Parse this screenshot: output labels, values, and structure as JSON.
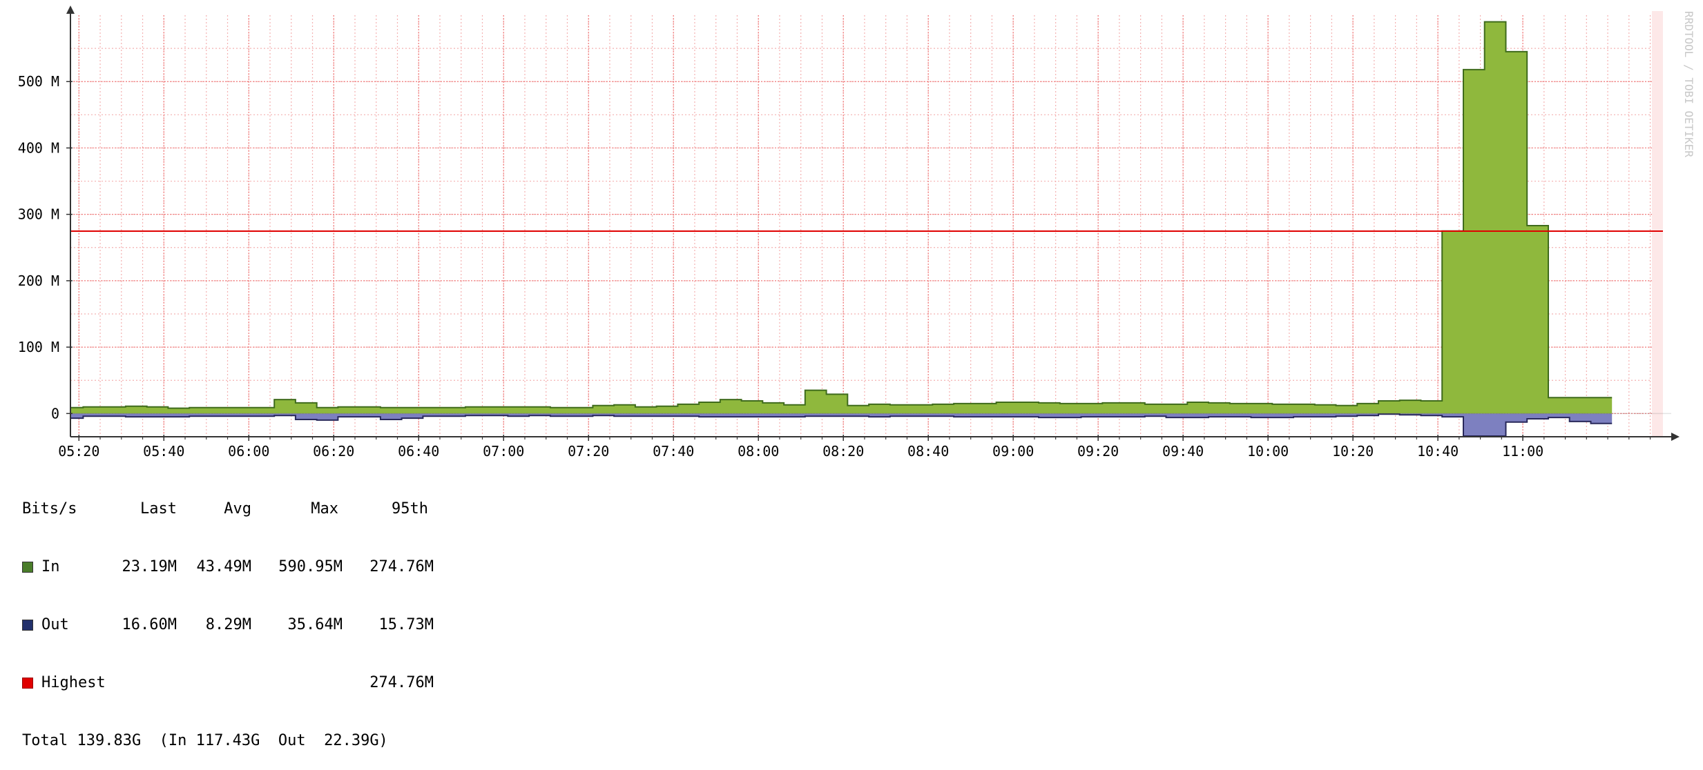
{
  "chart_data": {
    "type": "area",
    "watermark": "RRDTOOL / TOBI OETIKER",
    "y_ticks": [
      {
        "value": 0,
        "label": "0"
      },
      {
        "value": 100,
        "label": "100 M"
      },
      {
        "value": 200,
        "label": "200 M"
      },
      {
        "value": 300,
        "label": "300 M"
      },
      {
        "value": 400,
        "label": "400 M"
      },
      {
        "value": 500,
        "label": "500 M"
      }
    ],
    "x_ticks": [
      "05:20",
      "05:40",
      "06:00",
      "06:20",
      "06:40",
      "07:00",
      "07:20",
      "07:40",
      "08:00",
      "08:20",
      "08:40",
      "09:00",
      "09:20",
      "09:40",
      "10:00",
      "10:20",
      "10:40",
      "11:00"
    ],
    "x_range": [
      "05:18",
      "11:33"
    ],
    "ylim": [
      -35,
      600
    ],
    "unit": "Mbit/s",
    "grid": true,
    "threshold": {
      "name": "Highest",
      "value": 274.76,
      "color": "#e00000"
    },
    "series": [
      {
        "name": "In",
        "color": "#8fb83d",
        "line_color": "#3f6b1c",
        "direction": "up",
        "x": [
          "05:18",
          "05:21",
          "05:31",
          "05:36",
          "05:41",
          "05:46",
          "05:51",
          "05:56",
          "06:01",
          "06:06",
          "06:11",
          "06:16",
          "06:21",
          "06:26",
          "06:31",
          "06:36",
          "06:41",
          "06:46",
          "06:51",
          "06:56",
          "07:01",
          "07:06",
          "07:11",
          "07:16",
          "07:21",
          "07:26",
          "07:31",
          "07:36",
          "07:41",
          "07:46",
          "07:51",
          "07:56",
          "08:01",
          "08:06",
          "08:11",
          "08:16",
          "08:21",
          "08:26",
          "08:31",
          "08:36",
          "08:41",
          "08:46",
          "08:51",
          "08:56",
          "09:01",
          "09:06",
          "09:11",
          "09:16",
          "09:21",
          "09:26",
          "09:31",
          "09:36",
          "09:41",
          "09:46",
          "09:51",
          "09:56",
          "10:01",
          "10:06",
          "10:11",
          "10:16",
          "10:21",
          "10:26",
          "10:31",
          "10:36",
          "10:41",
          "10:46",
          "10:51",
          "10:56",
          "11:01",
          "11:06",
          "11:11",
          "11:16"
        ],
        "values": [
          9,
          10,
          11,
          10,
          8,
          9,
          9,
          9,
          9,
          21,
          16,
          9,
          10,
          10,
          9,
          9,
          9,
          9,
          10,
          10,
          10,
          10,
          9,
          9,
          12,
          13,
          10,
          11,
          14,
          17,
          21,
          19,
          16,
          13,
          35,
          29,
          12,
          14,
          13,
          13,
          14,
          15,
          15,
          17,
          17,
          16,
          15,
          15,
          16,
          16,
          14,
          14,
          17,
          16,
          15,
          15,
          14,
          14,
          13,
          12,
          15,
          19,
          20,
          19,
          275,
          518,
          590,
          545,
          283,
          24,
          24,
          24
        ]
      },
      {
        "name": "Out",
        "color": "#7d80c0",
        "line_color": "#28285a",
        "direction": "down",
        "x": [
          "05:18",
          "05:21",
          "05:31",
          "05:36",
          "05:41",
          "05:46",
          "05:51",
          "05:56",
          "06:01",
          "06:06",
          "06:11",
          "06:16",
          "06:21",
          "06:26",
          "06:31",
          "06:36",
          "06:41",
          "06:46",
          "06:51",
          "06:56",
          "07:01",
          "07:06",
          "07:11",
          "07:16",
          "07:21",
          "07:26",
          "07:31",
          "07:36",
          "07:41",
          "07:46",
          "07:51",
          "07:56",
          "08:01",
          "08:06",
          "08:11",
          "08:16",
          "08:21",
          "08:26",
          "08:31",
          "08:36",
          "08:41",
          "08:46",
          "08:51",
          "08:56",
          "09:01",
          "09:06",
          "09:11",
          "09:16",
          "09:21",
          "09:26",
          "09:31",
          "09:36",
          "09:41",
          "09:46",
          "09:51",
          "09:56",
          "10:01",
          "10:06",
          "10:11",
          "10:16",
          "10:21",
          "10:26",
          "10:31",
          "10:36",
          "10:41",
          "10:46",
          "10:51",
          "10:56",
          "11:01",
          "11:06",
          "11:11",
          "11:16"
        ],
        "values": [
          7,
          4,
          5,
          5,
          5,
          4,
          4,
          4,
          4,
          3,
          9,
          10,
          5,
          5,
          9,
          7,
          4,
          4,
          3,
          3,
          4,
          3,
          4,
          4,
          3,
          4,
          4,
          4,
          4,
          5,
          5,
          5,
          5,
          5,
          4,
          4,
          4,
          5,
          4,
          4,
          4,
          5,
          5,
          5,
          5,
          6,
          6,
          5,
          5,
          5,
          4,
          6,
          6,
          5,
          5,
          6,
          6,
          5,
          5,
          4,
          3,
          1,
          2,
          3,
          5,
          34,
          34,
          13,
          8,
          6,
          12,
          15
        ]
      }
    ]
  },
  "legend": {
    "header": {
      "unit": "Bits/s",
      "last": "Last",
      "avg": "Avg",
      "max": "Max",
      "p95": "95th"
    },
    "rows": [
      {
        "name": "In",
        "color": "#4a7d2a",
        "last": "23.19M",
        "avg": "43.49M",
        "max": "590.95M",
        "p95": "274.76M"
      },
      {
        "name": "Out",
        "color": "#22306b",
        "last": "16.60M",
        "avg": "8.29M",
        "max": "35.64M",
        "p95": "15.73M"
      },
      {
        "name": "Highest",
        "color": "#e00000",
        "last": "",
        "avg": "",
        "max": "",
        "p95": "274.76M"
      }
    ],
    "total": "Total 139.83G  (In 117.43G  Out  22.39G)"
  }
}
